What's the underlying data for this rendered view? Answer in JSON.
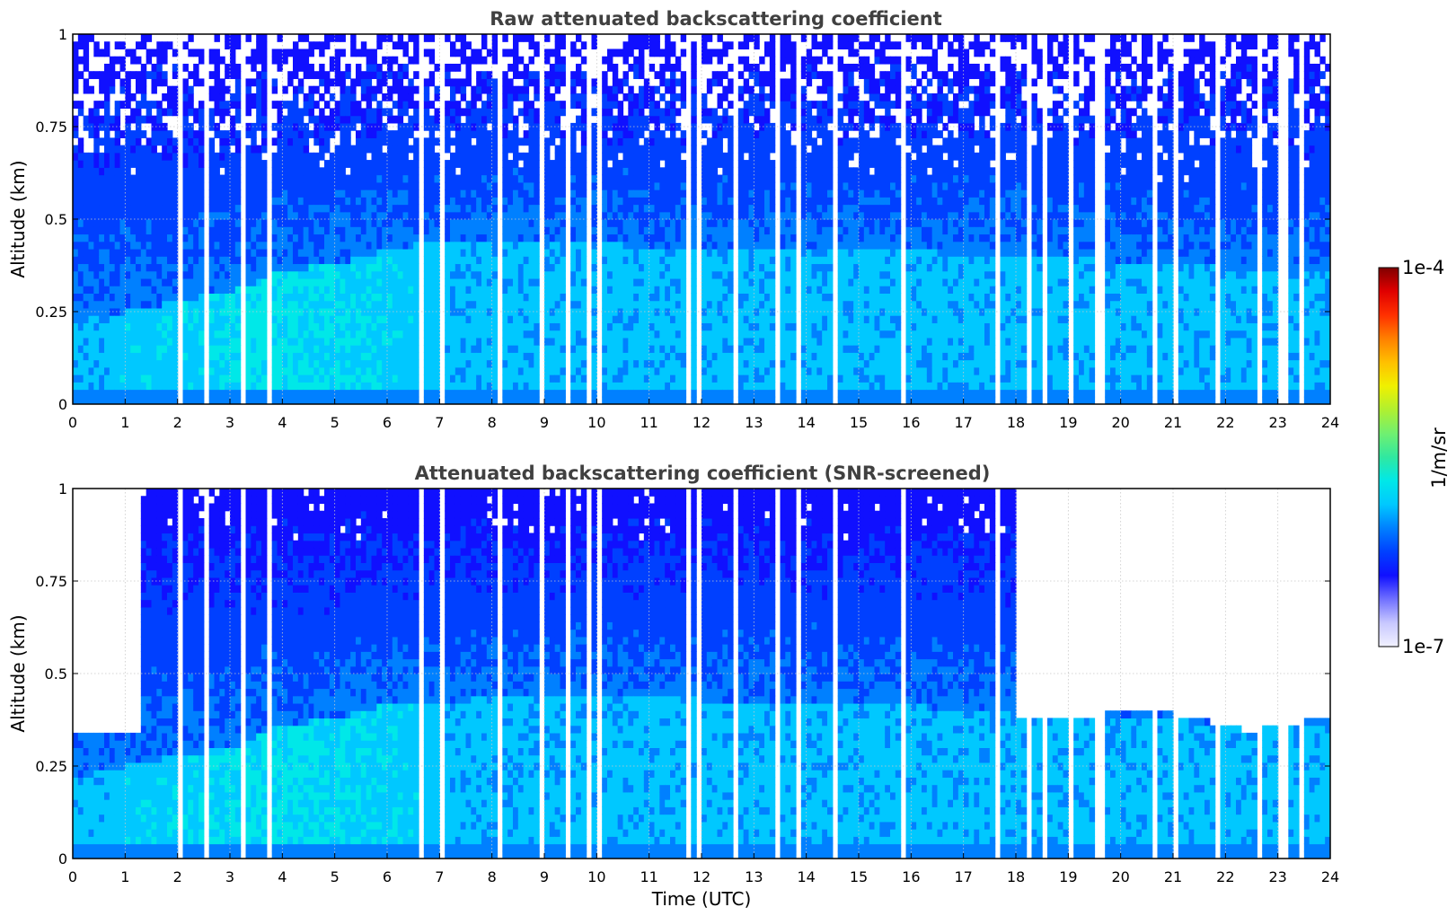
{
  "chart_data": [
    {
      "type": "heatmap",
      "title": "Raw attenuated backscattering coefficient",
      "xlabel": "",
      "ylabel": "Altitude (km)",
      "xlim": [
        0,
        24
      ],
      "ylim": [
        0,
        1
      ],
      "x_ticks": [
        "0",
        "1",
        "2",
        "3",
        "4",
        "5",
        "6",
        "7",
        "8",
        "9",
        "10",
        "11",
        "12",
        "13",
        "14",
        "15",
        "16",
        "17",
        "18",
        "19",
        "20",
        "21",
        "22",
        "23",
        "24"
      ],
      "y_ticks": [
        "0",
        "0.25",
        "0.5",
        "0.75",
        "1"
      ],
      "y_tick_values": [
        0,
        0.25,
        0.5,
        0.75,
        1
      ],
      "grid": true,
      "screened": false,
      "features": {
        "boundary_layer_top_km": [
          [
            0,
            0.22
          ],
          [
            1,
            0.25
          ],
          [
            2,
            0.28
          ],
          [
            3,
            0.3
          ],
          [
            4,
            0.36
          ],
          [
            5,
            0.38
          ],
          [
            6,
            0.42
          ],
          [
            7,
            0.44
          ],
          [
            9,
            0.44
          ],
          [
            12,
            0.42
          ],
          [
            15,
            0.42
          ],
          [
            18,
            0.4
          ],
          [
            21,
            0.38
          ],
          [
            24,
            0.35
          ]
        ],
        "enhanced_aerosol_layer": {
          "x_range": [
            0.7,
            7.2
          ],
          "peak_hour": 3.8,
          "top_km": [
            [
              0.7,
              0.22
            ],
            [
              2,
              0.28
            ],
            [
              3.8,
              0.33
            ],
            [
              5,
              0.38
            ],
            [
              6.5,
              0.42
            ]
          ]
        }
      }
    },
    {
      "type": "heatmap",
      "title": "Attenuated backscattering coefficient (SNR-screened)",
      "xlabel": "Time (UTC)",
      "ylabel": "Altitude (km)",
      "xlim": [
        0,
        24
      ],
      "ylim": [
        0,
        1
      ],
      "x_ticks": [
        "0",
        "1",
        "2",
        "3",
        "4",
        "5",
        "6",
        "7",
        "8",
        "9",
        "10",
        "11",
        "12",
        "13",
        "14",
        "15",
        "16",
        "17",
        "18",
        "19",
        "20",
        "21",
        "22",
        "23",
        "24"
      ],
      "y_ticks": [
        "0",
        "0.25",
        "0.5",
        "0.75",
        "1"
      ],
      "y_tick_values": [
        0,
        0.25,
        0.5,
        0.75,
        1
      ],
      "grid": true,
      "screened": true,
      "features": {
        "screened_below_top_km": [
          [
            0,
            0.34
          ],
          [
            0.7,
            0.335
          ],
          [
            1.3,
            0.345
          ],
          [
            18,
            0.38
          ],
          [
            19,
            0.38
          ],
          [
            20,
            0.4
          ],
          [
            21,
            0.39
          ],
          [
            22,
            0.36
          ],
          [
            22.5,
            0.345
          ],
          [
            23,
            0.36
          ],
          [
            24,
            0.38
          ]
        ],
        "screened_intervals_hours": [
          [
            0,
            1.3
          ],
          [
            18,
            24
          ]
        ]
      }
    }
  ],
  "colorbar": {
    "label": "1/m/sr",
    "min_label": "1e-7",
    "max_label": "1e-4",
    "min": 1e-07,
    "max": 0.0001,
    "scale": "log",
    "colormap": [
      "#f1f1ff",
      "#c8c8ff",
      "#7070ff",
      "#1010ff",
      "#0040ff",
      "#0080ff",
      "#00c8ff",
      "#00e8e8",
      "#30e8a0",
      "#70f070",
      "#b0f030",
      "#f0f000",
      "#ffc000",
      "#ff8000",
      "#ff3000",
      "#e00000",
      "#800000"
    ]
  }
}
